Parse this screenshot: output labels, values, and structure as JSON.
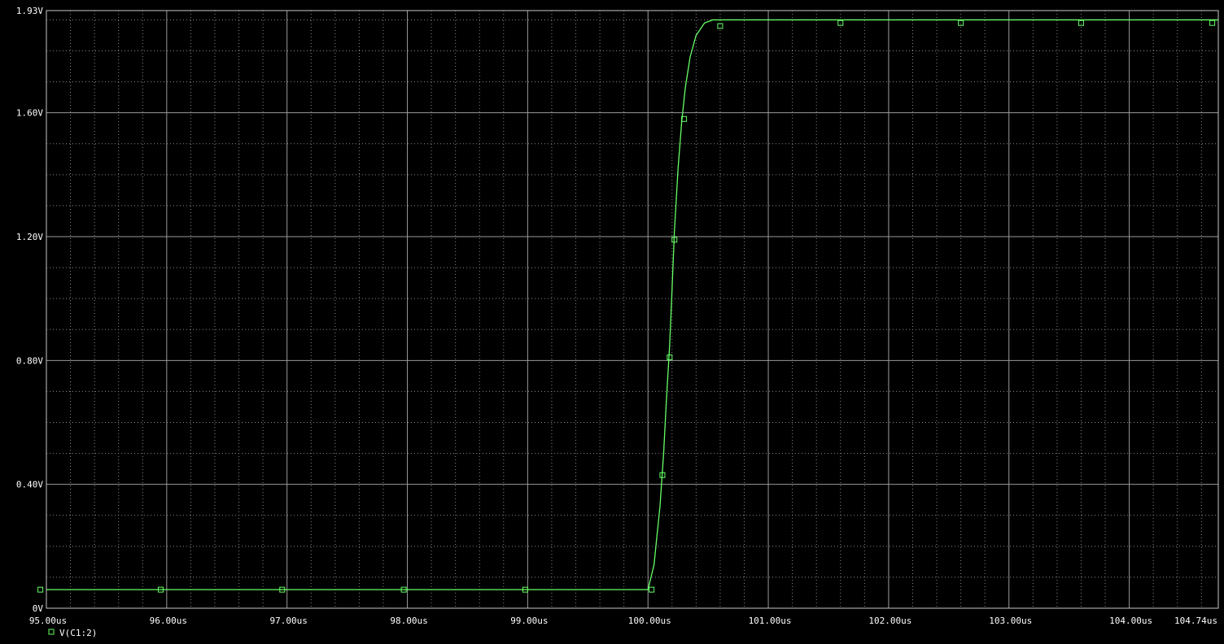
{
  "chart_data": {
    "type": "line",
    "title": "",
    "xlabel": "",
    "ylabel": "",
    "xlim": [
      95.0,
      104.74
    ],
    "ylim": [
      0,
      1.93
    ],
    "x_ticks": [
      {
        "value": 95.0,
        "label": "95.00us"
      },
      {
        "value": 96.0,
        "label": "96.00us"
      },
      {
        "value": 97.0,
        "label": "97.00us"
      },
      {
        "value": 98.0,
        "label": "98.00us"
      },
      {
        "value": 99.0,
        "label": "99.00us"
      },
      {
        "value": 100.0,
        "label": "100.00us"
      },
      {
        "value": 101.0,
        "label": "101.00us"
      },
      {
        "value": 102.0,
        "label": "102.00us"
      },
      {
        "value": 103.0,
        "label": "103.00us"
      },
      {
        "value": 104.0,
        "label": "104.00us"
      },
      {
        "value": 104.74,
        "label": "104.74us"
      }
    ],
    "y_ticks": [
      {
        "value": 0,
        "label": "0V"
      },
      {
        "value": 0.4,
        "label": "0.40V"
      },
      {
        "value": 0.8,
        "label": "0.80V"
      },
      {
        "value": 1.2,
        "label": "1.20V"
      },
      {
        "value": 1.6,
        "label": "1.60V"
      },
      {
        "value": 1.93,
        "label": "1.93V"
      }
    ],
    "grid": true,
    "legend_position": "bottom-left",
    "series": [
      {
        "name": "V(C1:2)",
        "color": "#66ff66",
        "marker": "hollow-square",
        "x": [
          95.0,
          100.0,
          100.05,
          100.1,
          100.13,
          100.15,
          100.18,
          100.2,
          100.22,
          100.25,
          100.28,
          100.31,
          100.35,
          100.4,
          100.47,
          100.54,
          100.6,
          101.6,
          102.6,
          103.6,
          104.74
        ],
        "y": [
          0.06,
          0.06,
          0.14,
          0.33,
          0.5,
          0.65,
          0.85,
          1.03,
          1.22,
          1.42,
          1.57,
          1.68,
          1.78,
          1.85,
          1.89,
          1.9,
          1.9,
          1.9,
          1.9,
          1.9,
          1.9
        ]
      }
    ],
    "markers": [
      {
        "x": 94.95,
        "y": 0.06
      },
      {
        "x": 95.95,
        "y": 0.06
      },
      {
        "x": 96.96,
        "y": 0.06
      },
      {
        "x": 97.97,
        "y": 0.06
      },
      {
        "x": 98.98,
        "y": 0.06
      },
      {
        "x": 100.03,
        "y": 0.06
      },
      {
        "x": 100.12,
        "y": 0.43
      },
      {
        "x": 100.18,
        "y": 0.81
      },
      {
        "x": 100.22,
        "y": 1.19
      },
      {
        "x": 100.3,
        "y": 1.58
      },
      {
        "x": 100.6,
        "y": 1.88
      },
      {
        "x": 101.6,
        "y": 1.89
      },
      {
        "x": 102.6,
        "y": 1.89
      },
      {
        "x": 103.6,
        "y": 1.89
      },
      {
        "x": 104.69,
        "y": 1.89
      }
    ]
  }
}
